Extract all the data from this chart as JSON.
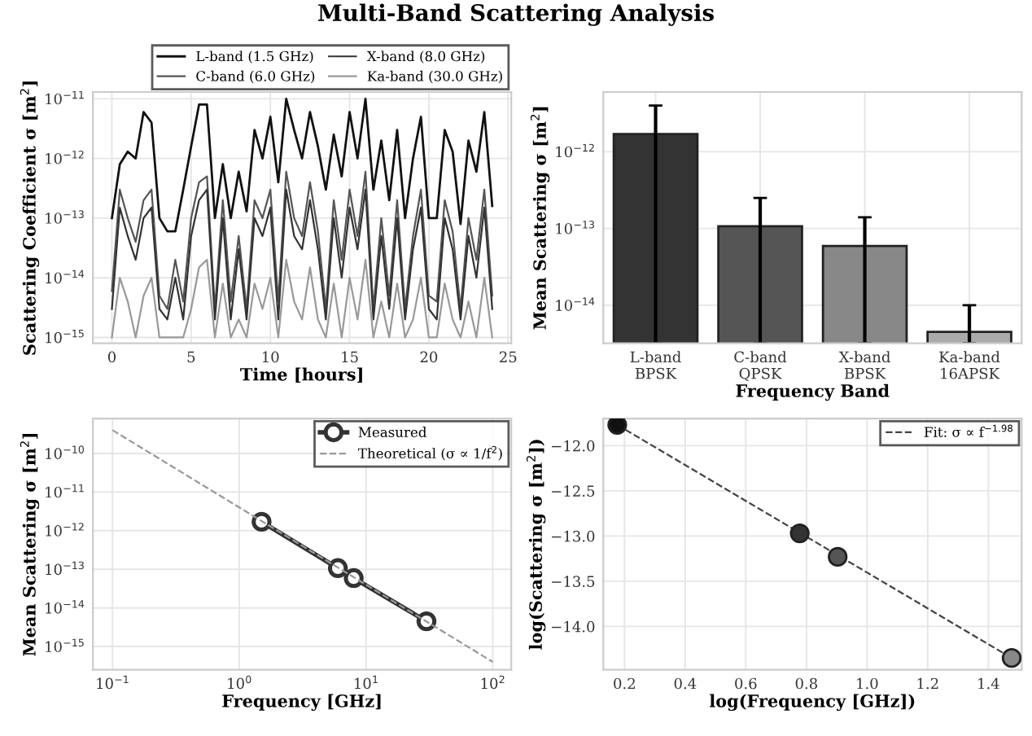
{
  "chart_data": [
    {
      "type": "line",
      "title": "Multi-Band Scattering Analysis",
      "xlabel": "Time [hours]",
      "ylabel": "Scattering Coefficient σ [m$^{2}$]",
      "log": "y",
      "grid": true,
      "legend": "top right",
      "line_style": "solid",
      "xlim": [
        -1.2,
        25.2
      ],
      "xticks": [
        0,
        5,
        10,
        15,
        20,
        25
      ],
      "ylim": [
        8e-16,
        1.3e-11
      ],
      "yticks": [
        {
          "value": 1e-15,
          "label": "10$^{−15}$"
        },
        {
          "value": 1e-14,
          "label": "10$^{−14}$"
        },
        {
          "value": 1e-13,
          "label": "10$^{−13}$"
        },
        {
          "value": 1e-12,
          "label": "10$^{−12}$"
        },
        {
          "value": 1e-11,
          "label": "10$^{−11}$"
        }
      ],
      "x": [
        0,
        0.5,
        1,
        1.5,
        2,
        2.5,
        3,
        3.5,
        4,
        4.5,
        5,
        5.5,
        6,
        6.5,
        7,
        7.5,
        8,
        8.5,
        9,
        9.5,
        10,
        10.5,
        11,
        11.5,
        12,
        12.5,
        13,
        13.5,
        14,
        14.5,
        15,
        15.5,
        16,
        16.5,
        17,
        17.5,
        18,
        18.5,
        19,
        19.5,
        20,
        20.5,
        21,
        21.5,
        22,
        22.5,
        23,
        23.5,
        24
      ],
      "series": [
        {
          "name": "L-band (1.5 GHz)",
          "color": "#111111",
          "values": [
            1e-13,
            8e-13,
            1.3e-12,
            1e-12,
            6e-12,
            4e-12,
            1e-13,
            6e-14,
            6e-14,
            3e-13,
            1.6e-12,
            8e-12,
            8e-12,
            1e-13,
            8e-13,
            1e-13,
            6e-13,
            1.3e-13,
            3e-12,
            1e-12,
            5e-12,
            4e-13,
            1e-11,
            3e-12,
            1e-12,
            6e-12,
            1.6e-12,
            3e-13,
            2.5e-12,
            5e-13,
            6e-12,
            1e-12,
            1e-11,
            3e-13,
            2e-12,
            2e-13,
            3e-12,
            1e-13,
            1e-12,
            5e-12,
            1e-13,
            1e-13,
            3e-12,
            1.3e-12,
            8e-14,
            2e-12,
            6e-13,
            6e-12,
            1.6e-13
          ]
        },
        {
          "name": "C-band (6.0 GHz)",
          "color": "#555555",
          "values": [
            6e-15,
            3e-13,
            1e-13,
            4e-14,
            2e-13,
            3e-13,
            5e-15,
            3e-15,
            2e-14,
            4e-15,
            1e-13,
            4e-13,
            5e-13,
            3e-15,
            2e-13,
            4e-15,
            5e-14,
            3e-15,
            2e-13,
            1e-13,
            3e-13,
            4e-15,
            6e-13,
            1e-13,
            5e-14,
            4e-13,
            6e-14,
            3e-15,
            2e-13,
            2e-14,
            3e-13,
            5e-14,
            6e-13,
            3e-15,
            1e-13,
            5e-15,
            2e-13,
            3e-15,
            5e-14,
            3e-13,
            5e-15,
            4e-15,
            2e-13,
            6e-14,
            3e-15,
            1e-13,
            2e-14,
            3e-13,
            5e-15
          ]
        },
        {
          "name": "X-band (8.0 GHz)",
          "color": "#333333",
          "values": [
            3e-15,
            1.5e-13,
            5e-14,
            2e-14,
            1e-13,
            1.5e-13,
            3e-15,
            2e-15,
            1e-14,
            2e-15,
            5e-14,
            2e-13,
            3e-13,
            2e-15,
            1e-13,
            2e-15,
            3e-14,
            2e-15,
            1e-13,
            5e-14,
            1.5e-13,
            2e-15,
            3e-13,
            5e-14,
            3e-14,
            2e-13,
            3e-14,
            2e-15,
            1e-13,
            1e-14,
            1.5e-13,
            3e-14,
            3e-13,
            2e-15,
            5e-14,
            3e-15,
            1e-13,
            2e-15,
            3e-14,
            1.5e-13,
            3e-15,
            2e-15,
            1e-13,
            3e-14,
            2e-15,
            5e-14,
            1e-14,
            1.5e-13,
            3e-15
          ]
        },
        {
          "name": "Ka-band (30.0 GHz)",
          "color": "#999999",
          "values": [
            1e-15,
            1e-14,
            4e-15,
            1e-15,
            5e-15,
            1e-14,
            1e-15,
            1e-15,
            1e-15,
            1e-15,
            3e-15,
            1.5e-14,
            2e-14,
            1e-15,
            8e-15,
            1e-15,
            2e-15,
            1e-15,
            8e-15,
            3e-15,
            1e-14,
            1e-15,
            2e-14,
            4e-15,
            2e-15,
            1.5e-14,
            2e-15,
            1e-15,
            8e-15,
            1e-15,
            1e-14,
            2e-15,
            2e-14,
            1e-15,
            4e-15,
            1e-15,
            8e-15,
            1e-15,
            2e-15,
            1e-14,
            1e-15,
            1e-15,
            8e-15,
            2e-15,
            1e-15,
            4e-15,
            1e-15,
            1e-14,
            1e-15
          ]
        }
      ]
    },
    {
      "type": "bar",
      "xlabel": "Frequency Band",
      "ylabel": "Mean Scattering σ [m$^{2}$]",
      "log": "y",
      "grid": true,
      "ylim": [
        3.2e-15,
        6e-12
      ],
      "yticks": [
        {
          "value": 1e-14,
          "label": "10$^{−14}$"
        },
        {
          "value": 1e-13,
          "label": "10$^{−13}$"
        },
        {
          "value": 1e-12,
          "label": "10$^{−12}$"
        }
      ],
      "categories": [
        "L-band\nBPSK",
        "C-band\nQPSK",
        "X-band\nBPSK",
        "Ka-band\n16APSK"
      ],
      "values": [
        1.7e-12,
        1.07e-13,
        5.9e-14,
        4.5e-15
      ],
      "colors": [
        "#333333",
        "#555555",
        "#888888",
        "#aaaaaa"
      ],
      "errors": [
        [
          3.2e-15,
          4e-12
        ],
        [
          3.2e-15,
          2.5e-13
        ],
        [
          3.2e-15,
          1.4e-13
        ],
        [
          3.2e-15,
          1e-14
        ]
      ]
    },
    {
      "type": "line",
      "xlabel": "Frequency [GHz]",
      "ylabel": "Mean Scattering σ [m$^{2}$]",
      "log": "xy",
      "grid": true,
      "legend": "top right",
      "xlim": [
        0.07,
        140
      ],
      "ylim": [
        2.5e-16,
        8e-10
      ],
      "xticks": [
        {
          "value": 0.1,
          "label": "10$^{−1}$"
        },
        {
          "value": 1,
          "label": "10$^{0}$"
        },
        {
          "value": 10,
          "label": "10$^{1}$"
        },
        {
          "value": 100,
          "label": "10$^{2}$"
        }
      ],
      "yticks": [
        {
          "value": 1e-15,
          "label": "10$^{−15}$"
        },
        {
          "value": 1e-14,
          "label": "10$^{−14}$"
        },
        {
          "value": 1e-13,
          "label": "10$^{−13}$"
        },
        {
          "value": 1e-12,
          "label": "10$^{−12}$"
        },
        {
          "value": 1e-11,
          "label": "10$^{−11}$"
        },
        {
          "value": 1e-10,
          "label": "10$^{−10}$"
        }
      ],
      "series": [
        {
          "name": "Measured",
          "color": "#333333",
          "marker": "circle",
          "line_style": "solid",
          "x": [
            1.5,
            6,
            8,
            30
          ],
          "values": [
            1.7e-12,
            1.07e-13,
            5.9e-14,
            4.5e-15
          ]
        },
        {
          "name": "Theoretical (σ ∝ 1/f$^{2}$)",
          "color": "#999999",
          "line_style": "dashed",
          "marker": "none",
          "x": [
            0.1,
            100
          ],
          "values": [
            4e-10,
            4e-16
          ]
        }
      ]
    },
    {
      "type": "scatter",
      "xlabel": "log(Frequency [GHz])",
      "ylabel": "log(Scattering σ [m$^{2}$])",
      "grid": true,
      "legend": "top right",
      "xlim": [
        0.13,
        1.51
      ],
      "ylim": [
        -14.48,
        -11.7
      ],
      "xticks": [
        0.2,
        0.4,
        0.6,
        0.8,
        {
          "value": 1,
          "label": "1.0"
        },
        1.2,
        1.4
      ],
      "yticks": [
        {
          "value": -14,
          "label": "−14.0"
        },
        {
          "value": -13.5,
          "label": "−13.5"
        },
        {
          "value": -13,
          "label": "−13.0"
        },
        {
          "value": -12.5,
          "label": "−12.5"
        },
        {
          "value": -12,
          "label": "−12.0"
        }
      ],
      "series": [
        {
          "type": "scatter",
          "x": [
            0.176,
            0.778,
            0.903,
            1.477
          ],
          "values": [
            -11.77,
            -12.97,
            -13.23,
            -14.35
          ],
          "colors": [
            "#111111",
            "#333333",
            "#555555",
            "#888888"
          ]
        },
        {
          "type": "line",
          "name": "Fit: σ ∝ f$^{−1.98}$",
          "color": "#444444",
          "line_style": "dashed",
          "marker": "none",
          "x": [
            0.176,
            1.477
          ],
          "values": [
            -11.77,
            -14.35
          ]
        }
      ]
    }
  ]
}
